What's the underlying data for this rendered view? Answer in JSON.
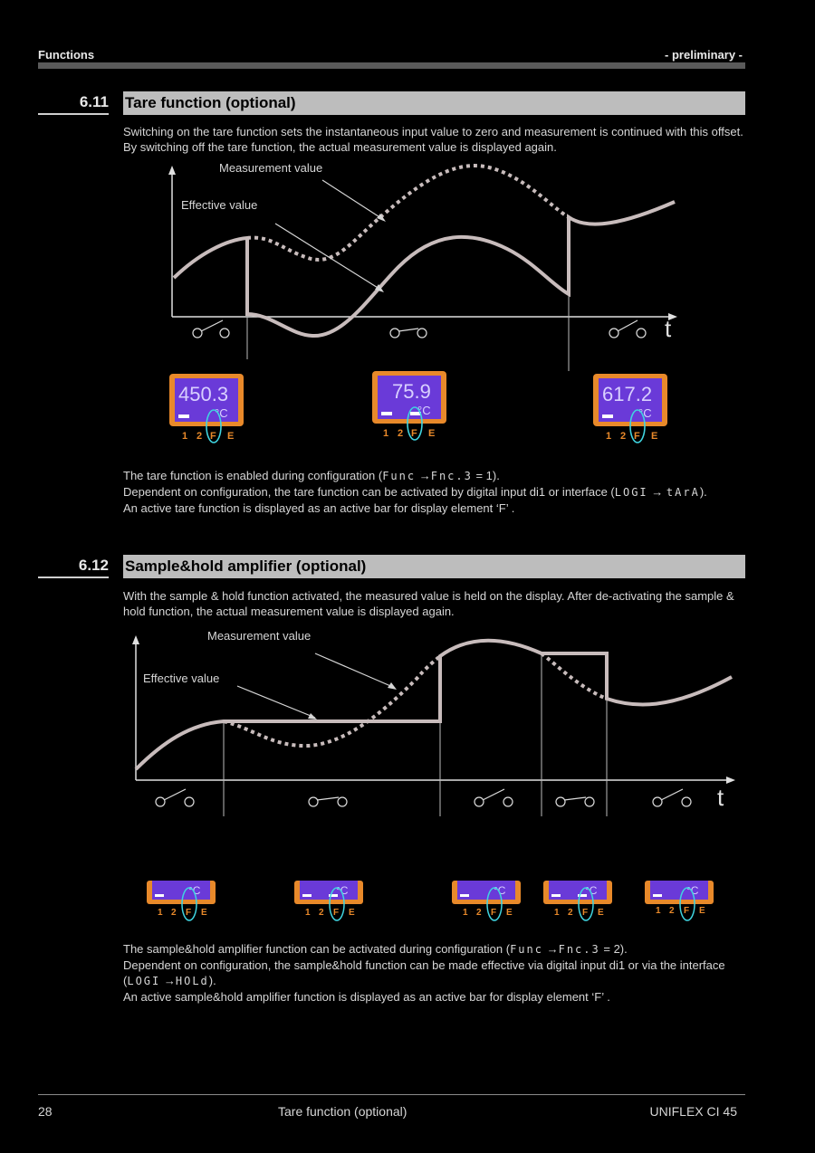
{
  "header": {
    "section_name": "Functions",
    "status": "- preliminary -"
  },
  "section_611": {
    "number": "6.11",
    "title": "Tare function (optional)",
    "intro": "Switching on the tare function sets the instantaneous input value to zero and measurement is continued with this offset. By switching off the tare function, the actual measurement value is displayed again.",
    "label_measurement": "Measurement value",
    "label_effective": "Effective value",
    "axis_t": "t",
    "displays": [
      {
        "value": "450.3",
        "unit": "°C",
        "keys": [
          "1",
          "2",
          "F",
          "E"
        ]
      },
      {
        "value": "75.9",
        "unit": "°C",
        "keys": [
          "1",
          "2",
          "F",
          "E"
        ]
      },
      {
        "value": "617.2",
        "unit": "°C",
        "keys": [
          "1",
          "2",
          "F",
          "E"
        ]
      }
    ],
    "text_line1_a": "The tare function is enabled during configuration (",
    "text_line1_code1": "Func",
    "text_line1_arrow": "→",
    "text_line1_code2": "Fnc.3",
    "text_line1_b": "= 1).",
    "text_line2_a": "Dependent on configuration, the tare function can be activated by digital input di1 or interface (",
    "text_line2_code1": "LOGI",
    "text_line2_arrow": "→",
    "text_line2_code2": "tArA",
    "text_line2_b": ").",
    "text_line3": "An active tare function is displayed as an active bar for display element ‘F’ ."
  },
  "section_612": {
    "number": "6.12",
    "title": "Sample&hold amplifier (optional)",
    "intro": "With the sample & hold function activated, the measured value is held on the display. After de-activating the sample & hold function, the actual measurement value is displayed again.",
    "label_measurement": "Measurement value",
    "label_effective": "Effective value",
    "axis_t": "t",
    "displays": [
      {
        "unit": "°C",
        "keys": [
          "1",
          "2",
          "F",
          "E"
        ]
      },
      {
        "unit": "°C",
        "keys": [
          "1",
          "2",
          "F",
          "E"
        ]
      },
      {
        "unit": "°C",
        "keys": [
          "1",
          "2",
          "F",
          "E"
        ]
      },
      {
        "unit": "°C",
        "keys": [
          "1",
          "2",
          "F",
          "E"
        ]
      },
      {
        "unit": "°C",
        "keys": [
          "1",
          "2",
          "F",
          "E"
        ]
      }
    ],
    "text_line1_a": "The sample&hold amplifier function can be activated during configuration (",
    "text_line1_code1": "Func",
    "text_line1_arrow": "→",
    "text_line1_code2": "Fnc.3",
    "text_line1_b": "= 2).",
    "text_line2": "Dependent on configuration, the sample&hold function can be made effective via digital input di1 or via the interface",
    "text_line2b_a": "(",
    "text_line2b_code1": "LOGI",
    "text_line2b_arrow": "→",
    "text_line2b_code2": "HOLd",
    "text_line2b_b": ").",
    "text_line3": "An active sample&hold amplifier function is displayed as an active bar for display element ‘F’ ."
  },
  "footer": {
    "page_number": "28",
    "center_title": "Tare function (optional)",
    "product": "UNIFLEX CI 45"
  },
  "colors": {
    "background": "#000000",
    "curve": "#c8bcbc",
    "title_bar": "#bdbdbd",
    "lcd_frame": "#e8892a",
    "lcd_screen": "#6a3ad8",
    "f_highlight": "#3fd4e0"
  }
}
